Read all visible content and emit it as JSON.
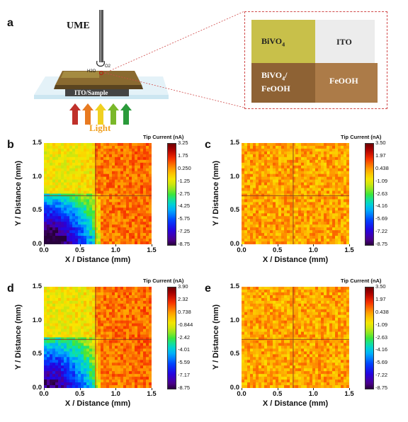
{
  "panel_a": {
    "letter": "a",
    "ume_label": "UME",
    "substrate_label": "ITO/Sample",
    "light_label": "Light",
    "h2o_label": "H2O",
    "o2_label": "O2",
    "zoom": {
      "bivo4": "BiVO",
      "bivo4_sub": "4",
      "ito": "ITO",
      "bivo4_feooh_line1": "BiVO",
      "bivo4_feooh_sub": "4",
      "bivo4_feooh_line1_suffix": "/",
      "bivo4_feooh_line2": "FeOOH",
      "feooh": "FeOOH"
    },
    "colors": {
      "bivo4": "#c8c04a",
      "ito": "#ececec",
      "bivo4_feooh": "#9a6a36",
      "feooh": "#b07a48",
      "dashed_box": "#d04a4a",
      "light_text": "#f0a020"
    },
    "arrow_colors": [
      "#c0302a",
      "#e87a20",
      "#f0d020",
      "#7ab82a",
      "#2a9a3a"
    ]
  },
  "chart_data": [
    {
      "panel": "b",
      "type": "heatmap",
      "xlabel": "X / Distance (mm)",
      "ylabel": "Y / Distance (mm)",
      "xticks": [
        "0.0",
        "0.5",
        "1.0",
        "1.5"
      ],
      "yticks": [
        "0.0",
        "0.5",
        "1.0",
        "1.5"
      ],
      "xlim": [
        0,
        1.5
      ],
      "ylim": [
        0,
        1.5
      ],
      "colorbar_title": "Tip Current (nA)",
      "colorbar_ticks": [
        "3.25",
        "1.75",
        "0.250",
        "-1.25",
        "-2.75",
        "-4.25",
        "-5.75",
        "-7.25",
        "-8.75"
      ],
      "zlim": [
        -8.75,
        3.25
      ],
      "divider": {
        "x": 0.72,
        "y": 0.72
      },
      "pattern": "reduced-lower-left"
    },
    {
      "panel": "c",
      "type": "heatmap",
      "xlabel": "X / Distance (mm)",
      "ylabel": "Y / Distance (mm)",
      "xticks": [
        "0.0",
        "0.5",
        "1.0",
        "1.5"
      ],
      "yticks": [
        "0.0",
        "0.5",
        "1.0",
        "1.5"
      ],
      "xlim": [
        0,
        1.5
      ],
      "ylim": [
        0,
        1.5
      ],
      "colorbar_title": "Tip Current (nA)",
      "colorbar_ticks": [
        "3.50",
        "1.97",
        "0.438",
        "-1.09",
        "-2.63",
        "-4.16",
        "-5.69",
        "-7.22",
        "-8.75"
      ],
      "zlim": [
        -8.75,
        3.5
      ],
      "divider": {
        "x": 0.72,
        "y": 0.72
      },
      "pattern": "uniform"
    },
    {
      "panel": "d",
      "type": "heatmap",
      "xlabel": "X / Distance (mm)",
      "ylabel": "Y / Distance (mm)",
      "xticks": [
        "0.0",
        "0.5",
        "1.0",
        "1.5"
      ],
      "yticks": [
        "0.0",
        "0.5",
        "1.0",
        "1.5"
      ],
      "xlim": [
        0,
        1.5
      ],
      "ylim": [
        0,
        1.5
      ],
      "colorbar_title": "Tip Current (nA)",
      "colorbar_ticks": [
        "3.90",
        "2.32",
        "0.738",
        "-0.844",
        "-2.42",
        "-4.01",
        "-5.59",
        "-7.17",
        "-8.75"
      ],
      "zlim": [
        -8.75,
        3.9
      ],
      "divider": {
        "x": 0.72,
        "y": 0.72
      },
      "pattern": "reduced-lower-left-blocky"
    },
    {
      "panel": "e",
      "type": "heatmap",
      "xlabel": "X / Distance (mm)",
      "ylabel": "Y / Distance (mm)",
      "xticks": [
        "0.0",
        "0.5",
        "1.0",
        "1.5"
      ],
      "yticks": [
        "0.0",
        "0.5",
        "1.0",
        "1.5"
      ],
      "xlim": [
        0,
        1.5
      ],
      "ylim": [
        0,
        1.5
      ],
      "colorbar_title": "Tip Current (nA)",
      "colorbar_ticks": [
        "3.50",
        "1.97",
        "0.438",
        "-1.09",
        "-2.63",
        "-4.16",
        "-5.69",
        "-7.22",
        "-8.75"
      ],
      "zlim": [
        -8.75,
        3.5
      ],
      "divider": {
        "x": 0.72,
        "y": 0.72
      },
      "pattern": "uniform"
    }
  ]
}
